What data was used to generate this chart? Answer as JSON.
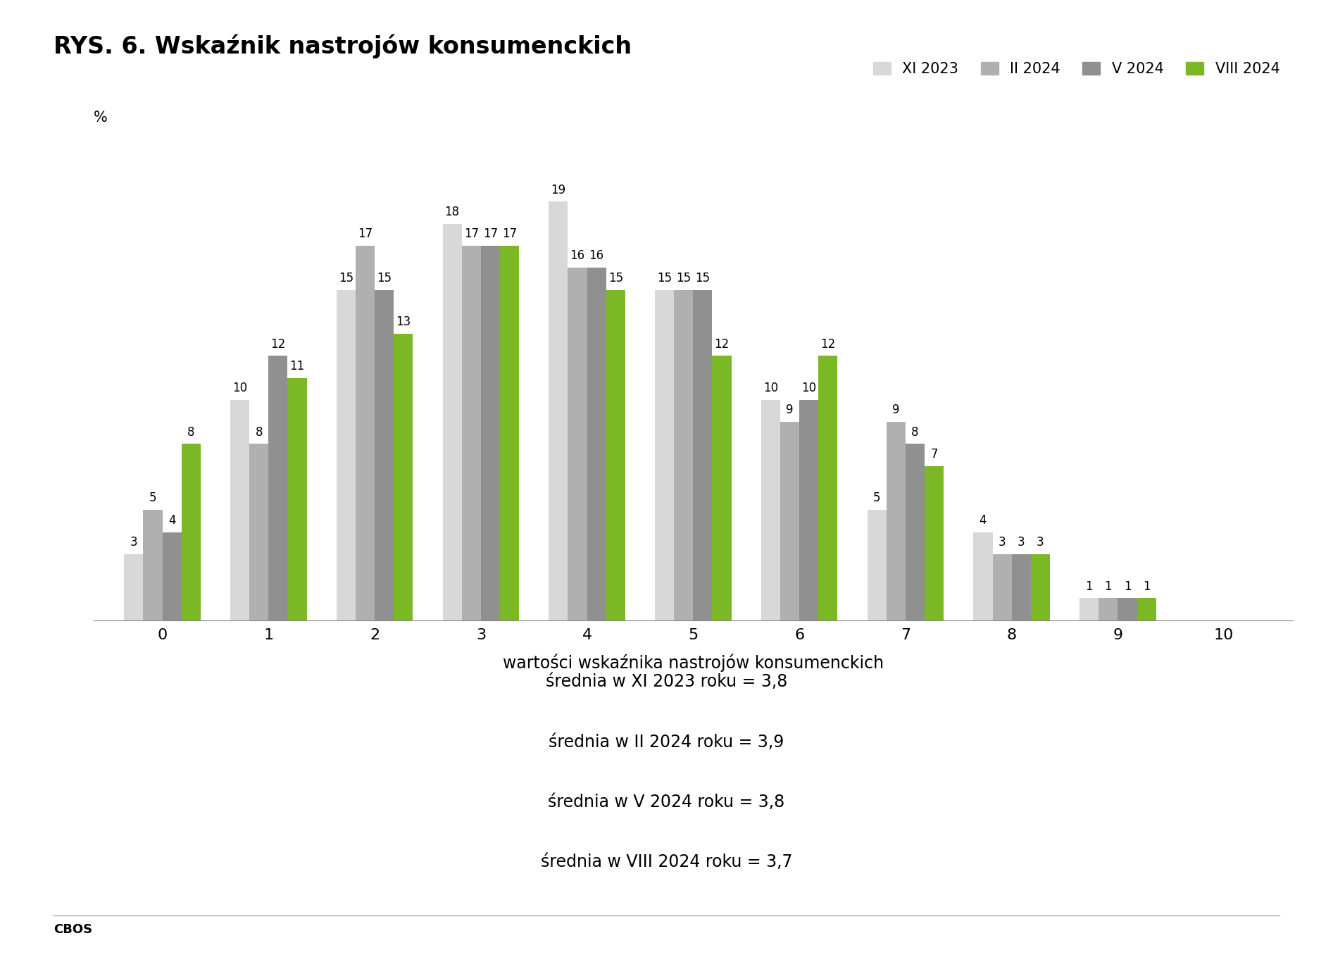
{
  "title": "RYS. 6. Wskaźnik nastrojów konsumenckich",
  "xlabel": "wartości wskaźnika nastrojów konsumenckich",
  "ylabel": "%",
  "categories": [
    0,
    1,
    2,
    3,
    4,
    5,
    6,
    7,
    8,
    9,
    10
  ],
  "series": {
    "XI 2023": [
      3,
      10,
      15,
      18,
      19,
      15,
      10,
      5,
      4,
      1,
      0
    ],
    "II 2024": [
      5,
      8,
      17,
      17,
      16,
      15,
      9,
      9,
      3,
      1,
      0
    ],
    "V 2024": [
      4,
      12,
      15,
      17,
      16,
      15,
      10,
      8,
      3,
      1,
      0
    ],
    "VIII 2024": [
      8,
      11,
      13,
      17,
      15,
      12,
      12,
      7,
      3,
      1,
      0
    ]
  },
  "colors": {
    "XI 2023": "#d8d8d8",
    "II 2024": "#b0b0b0",
    "V 2024": "#909090",
    "VIII 2024": "#7ab825"
  },
  "legend_labels": [
    "XI 2023",
    "II 2024",
    "V 2024",
    "VIII 2024"
  ],
  "averages": [
    "średnia w XI 2023 roku = 3,8",
    "średnia w II 2024 roku = 3,9",
    "średnia w V 2024 roku = 3,8",
    "średnia w VIII 2024 roku = 3,7"
  ],
  "cbos_label": "CBOS",
  "bar_width": 0.18,
  "ylim": [
    0,
    22
  ],
  "title_fontsize": 24,
  "axis_fontsize": 15,
  "legend_fontsize": 15,
  "label_fontsize": 12,
  "avg_fontsize": 17,
  "xtick_fontsize": 16
}
